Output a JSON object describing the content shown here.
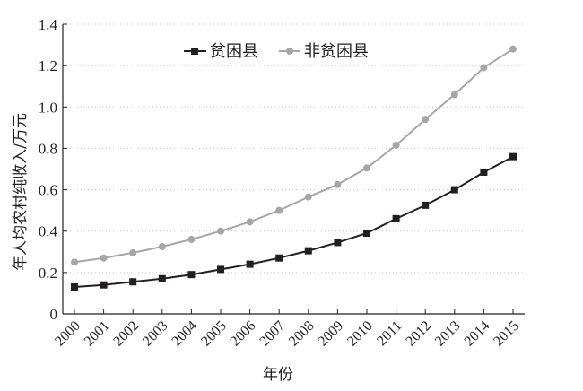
{
  "chart_data": {
    "type": "line",
    "title": "",
    "xlabel": "年份",
    "ylabel": "年人均农村纯收入/万元",
    "x": [
      2000,
      2001,
      2002,
      2003,
      2004,
      2005,
      2006,
      2007,
      2008,
      2009,
      2010,
      2011,
      2012,
      2013,
      2014,
      2015
    ],
    "xticks": [
      "2000",
      "2001",
      "2002",
      "2003",
      "2004",
      "2005",
      "2006",
      "2007",
      "2008",
      "2009",
      "2010",
      "2011",
      "2012",
      "2013",
      "2014",
      "2015"
    ],
    "ylim": [
      0,
      1.4
    ],
    "yticks": [
      "0",
      "0.2",
      "0.4",
      "0.6",
      "0.8",
      "1.0",
      "1.2",
      "1.4"
    ],
    "grid": "horizontal dotted",
    "legend_position": "top-center",
    "series": [
      {
        "name": "贫困县",
        "color": "#231f20",
        "marker": "square",
        "values": [
          0.13,
          0.14,
          0.155,
          0.17,
          0.19,
          0.215,
          0.24,
          0.27,
          0.305,
          0.345,
          0.39,
          0.46,
          0.525,
          0.6,
          0.685,
          0.76
        ]
      },
      {
        "name": "非贫困县",
        "color": "#a6a6a6",
        "marker": "circle",
        "values": [
          0.25,
          0.27,
          0.295,
          0.325,
          0.36,
          0.4,
          0.445,
          0.5,
          0.565,
          0.625,
          0.705,
          0.815,
          0.94,
          1.06,
          1.19,
          1.28
        ]
      }
    ]
  }
}
